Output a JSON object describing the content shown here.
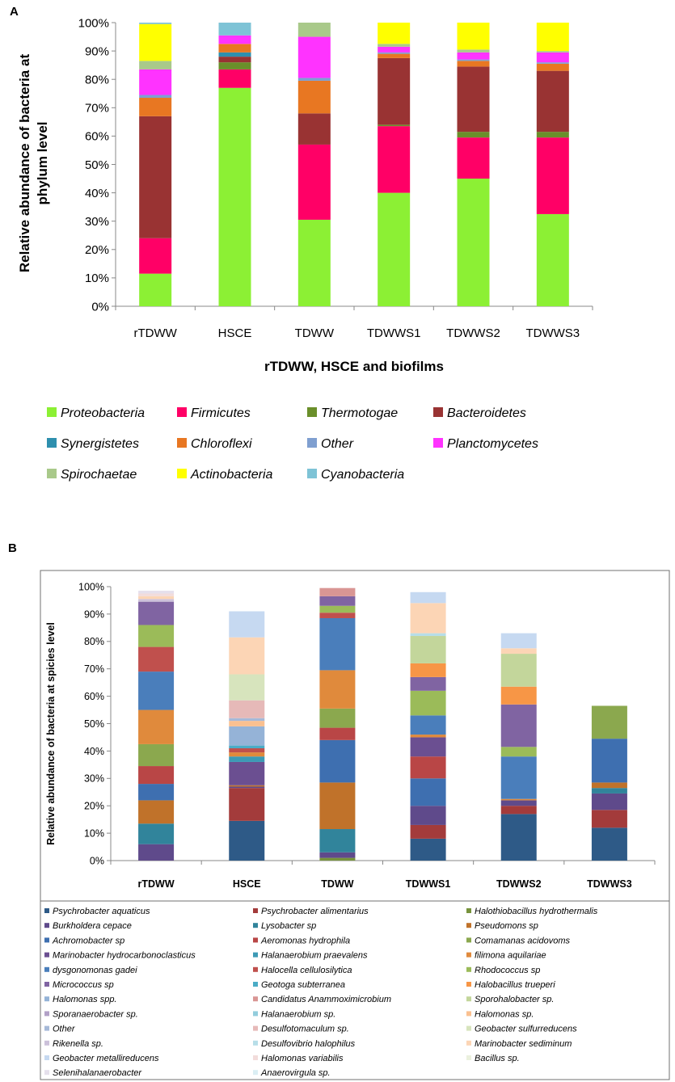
{
  "panel_a": {
    "panel_label": "A",
    "chart_data": {
      "type": "bar",
      "stacked": true,
      "title": "",
      "xlabel": "rTDWW, HSCE and biofilms",
      "ylabel_lines": [
        "Relative abundance of bacteria at",
        "phylum level"
      ],
      "ylim": [
        0,
        100
      ],
      "yticks": [
        "0%",
        "10%",
        "20%",
        "30%",
        "40%",
        "50%",
        "60%",
        "70%",
        "80%",
        "90%",
        "100%"
      ],
      "categories": [
        "rTDWW",
        "HSCE",
        "TDWW",
        "TDWWS1",
        "TDWWS2",
        "TDWWS3"
      ],
      "legend_italic": true,
      "series": [
        {
          "name": "Proteobacteria",
          "color": "#8CF034",
          "values": [
            11.5,
            77.0,
            30.5,
            40.0,
            45.0,
            32.5
          ]
        },
        {
          "name": "Firmicutes",
          "color": "#FF0066",
          "values": [
            12.5,
            6.5,
            26.5,
            23.5,
            14.5,
            27.0
          ]
        },
        {
          "name": "Thermotogae",
          "color": "#6A8F2A",
          "values": [
            0.0,
            2.5,
            0.0,
            0.5,
            2.0,
            2.0
          ]
        },
        {
          "name": "Bacteroidetes",
          "color": "#993333",
          "values": [
            43.0,
            2.0,
            11.0,
            23.5,
            23.0,
            21.5
          ]
        },
        {
          "name": "Synergistetes",
          "color": "#2E8FAE",
          "values": [
            0.0,
            1.5,
            0.0,
            0.0,
            0.0,
            0.0
          ]
        },
        {
          "name": "Chloroflexi",
          "color": "#E87722",
          "values": [
            6.5,
            3.0,
            11.5,
            1.5,
            2.0,
            2.5
          ]
        },
        {
          "name": "Other",
          "color": "#7F9FD0",
          "values": [
            1.0,
            0.0,
            1.0,
            0.5,
            0.5,
            0.5
          ]
        },
        {
          "name": "Planctomycetes",
          "color": "#FF33FF",
          "values": [
            9.0,
            3.0,
            14.5,
            2.0,
            2.5,
            3.5
          ]
        },
        {
          "name": "Spirochaetae",
          "color": "#A9C98A",
          "values": [
            3.0,
            0.0,
            5.0,
            1.0,
            1.0,
            0.5
          ]
        },
        {
          "name": "Actinobacteria",
          "color": "#FFFF00",
          "values": [
            13.0,
            0.0,
            0.0,
            7.5,
            9.5,
            10.0
          ]
        },
        {
          "name": "Cyanobacteria",
          "color": "#7EC3D6",
          "values": [
            0.5,
            4.5,
            0.0,
            0.0,
            0.0,
            0.0
          ]
        }
      ]
    }
  },
  "panel_b": {
    "panel_label": "B",
    "chart_data": {
      "type": "bar",
      "stacked": true,
      "title": "",
      "xlabel": "",
      "ylabel": "Relative abundance of bacteria at spicies level",
      "ylim": [
        0,
        100
      ],
      "yticks": [
        "0%",
        "10%",
        "20%",
        "30%",
        "40%",
        "50%",
        "60%",
        "70%",
        "80%",
        "90%",
        "100%"
      ],
      "categories": [
        "rTDWW",
        "HSCE",
        "TDWW",
        "TDWWS1",
        "TDWWS2",
        "TDWWS3"
      ],
      "legend_italic": true,
      "series": [
        {
          "name": "Psychrobacter aquaticus",
          "color": "#2E5A87",
          "values": [
            0,
            14.5,
            0,
            8,
            17,
            12
          ]
        },
        {
          "name": "Psychrobacter alimentarius",
          "color": "#A33B3B",
          "values": [
            0,
            12,
            0,
            5,
            3,
            6.5
          ]
        },
        {
          "name": "Halothiobacillus hydrothermalis",
          "color": "#77933C",
          "values": [
            0,
            0,
            1,
            0,
            0,
            0
          ]
        },
        {
          "name": "Burkholdera cepace",
          "color": "#5F4A8B",
          "values": [
            6,
            0.5,
            2,
            7,
            2,
            6
          ]
        },
        {
          "name": "Lysobacter sp",
          "color": "#31849B",
          "values": [
            7.5,
            0,
            8.5,
            0,
            0,
            2
          ]
        },
        {
          "name": "Pseudomons sp",
          "color": "#C0722A",
          "values": [
            8.5,
            0.5,
            17,
            0,
            0,
            2
          ]
        },
        {
          "name": "Achromobacter sp",
          "color": "#3E6FB0",
          "values": [
            6,
            0,
            15.5,
            10,
            0,
            16
          ]
        },
        {
          "name": "Aeromonas hydrophila",
          "color": "#B94646",
          "values": [
            6.5,
            0,
            4.5,
            8,
            0,
            0
          ]
        },
        {
          "name": "Comamanas acidovoms",
          "color": "#8BA84E",
          "values": [
            8,
            0,
            7,
            0,
            0,
            12
          ]
        },
        {
          "name": "Marinobacter hydrocarbonoclasticus",
          "color": "#6B4F91",
          "values": [
            0,
            8.5,
            0,
            7,
            0,
            0
          ]
        },
        {
          "name": "Halanaerobium praevalens",
          "color": "#3D9AB5",
          "values": [
            0,
            2,
            0,
            0,
            0,
            0
          ]
        },
        {
          "name": "filimona aquilariae",
          "color": "#E08A3C",
          "values": [
            12.5,
            1.5,
            14,
            1,
            0.5,
            0
          ]
        },
        {
          "name": "dysgonomonas gadei",
          "color": "#4A7EBB",
          "values": [
            14,
            0,
            19,
            7,
            15.5,
            0
          ]
        },
        {
          "name": "Halocella cellulosilytica",
          "color": "#C0504D",
          "values": [
            9,
            1.5,
            2,
            0,
            0,
            0
          ]
        },
        {
          "name": "Rhodococcus sp",
          "color": "#9BBB59",
          "values": [
            8,
            0,
            2.5,
            9,
            3.5,
            0
          ]
        },
        {
          "name": "Micrococcus sp",
          "color": "#8064A2",
          "values": [
            8.5,
            0,
            3.5,
            5,
            15.5,
            0
          ]
        },
        {
          "name": "Geotoga subterranea",
          "color": "#4BACC6",
          "values": [
            0,
            1,
            0,
            0,
            0,
            0
          ]
        },
        {
          "name": "Halobacillus trueperi",
          "color": "#F79646",
          "values": [
            0,
            0,
            0,
            5,
            6.5,
            0
          ]
        },
        {
          "name": "Halomonas spp.",
          "color": "#95B3D7",
          "values": [
            0,
            7,
            0,
            0,
            0,
            0
          ]
        },
        {
          "name": "Candidatus Anammoximicrobium",
          "color": "#D99694",
          "values": [
            0,
            0,
            3,
            0,
            0,
            0
          ]
        },
        {
          "name": "Sporohalobacter sp.",
          "color": "#C3D69B",
          "values": [
            0,
            0,
            0,
            10,
            12,
            0
          ]
        },
        {
          "name": "Sporanaerobacter sp.",
          "color": "#B2A1C7",
          "values": [
            0,
            0,
            0,
            0,
            0,
            0
          ]
        },
        {
          "name": "Halanaerobium sp.",
          "color": "#93CDDD",
          "values": [
            0,
            0,
            0,
            0,
            0,
            0
          ]
        },
        {
          "name": "Halomonas sp.",
          "color": "#FAC090",
          "values": [
            0,
            2,
            0,
            0,
            0,
            0
          ]
        },
        {
          "name": "Other",
          "color": "#A6B9D8",
          "values": [
            0,
            1,
            0,
            0,
            0,
            0
          ]
        },
        {
          "name": "Desulfotomaculum sp.",
          "color": "#E6B9B8",
          "values": [
            0,
            6.5,
            0,
            0,
            0,
            0
          ]
        },
        {
          "name": "Geobacter sulfurreducens",
          "color": "#D7E4BD",
          "values": [
            0,
            9.5,
            0,
            0,
            0,
            0
          ]
        },
        {
          "name": "Rikenella sp.",
          "color": "#CCC1DA",
          "values": [
            1,
            0,
            0,
            0,
            0,
            0
          ]
        },
        {
          "name": "Desulfovibrio halophilus",
          "color": "#B7DEE8",
          "values": [
            0,
            0,
            0,
            1,
            0,
            0
          ]
        },
        {
          "name": "Marinobacter sediminum",
          "color": "#FCD5B5",
          "values": [
            1,
            13.5,
            0,
            11,
            2,
            0
          ]
        },
        {
          "name": "Geobacter metallireducens",
          "color": "#C6D9F1",
          "values": [
            0,
            9.5,
            0,
            4,
            5.5,
            0
          ]
        },
        {
          "name": "Halomonas variabilis",
          "color": "#F2DCDB",
          "values": [
            1,
            0,
            0,
            0,
            0,
            0
          ]
        },
        {
          "name": "Bacillus sp.",
          "color": "#EBF1DE",
          "values": [
            0,
            0,
            0,
            0,
            0,
            0
          ]
        },
        {
          "name": "Selenihalanaerobacter",
          "color": "#E5E0EC",
          "values": [
            1,
            0,
            0,
            0,
            0,
            0
          ]
        },
        {
          "name": "Anaerovirgula sp.",
          "color": "#DBEEF4",
          "values": [
            0,
            0,
            0,
            0,
            0,
            0
          ]
        }
      ]
    }
  }
}
